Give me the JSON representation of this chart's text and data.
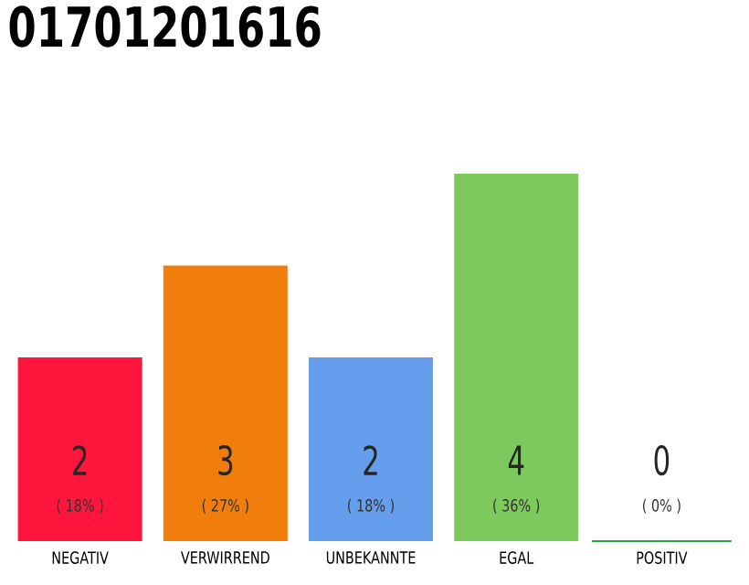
{
  "chart_data": {
    "type": "bar",
    "title": "01701201616",
    "categories": [
      "NEGATIV",
      "VERWIRREND",
      "UNBEKANNTE",
      "EGAL",
      "POSITIV"
    ],
    "values": [
      2,
      3,
      2,
      4,
      0
    ],
    "colors": [
      "#ff163c",
      "#f07d0c",
      "#659eec",
      "#7dc95e",
      "#22aa44"
    ],
    "ylim": [
      0,
      4
    ],
    "tick_labels": "x",
    "data_labels": true,
    "annotations": [
      "( 18% )",
      "( 27% )",
      "( 18% )",
      "( 36% )",
      "( 0% )"
    ]
  }
}
